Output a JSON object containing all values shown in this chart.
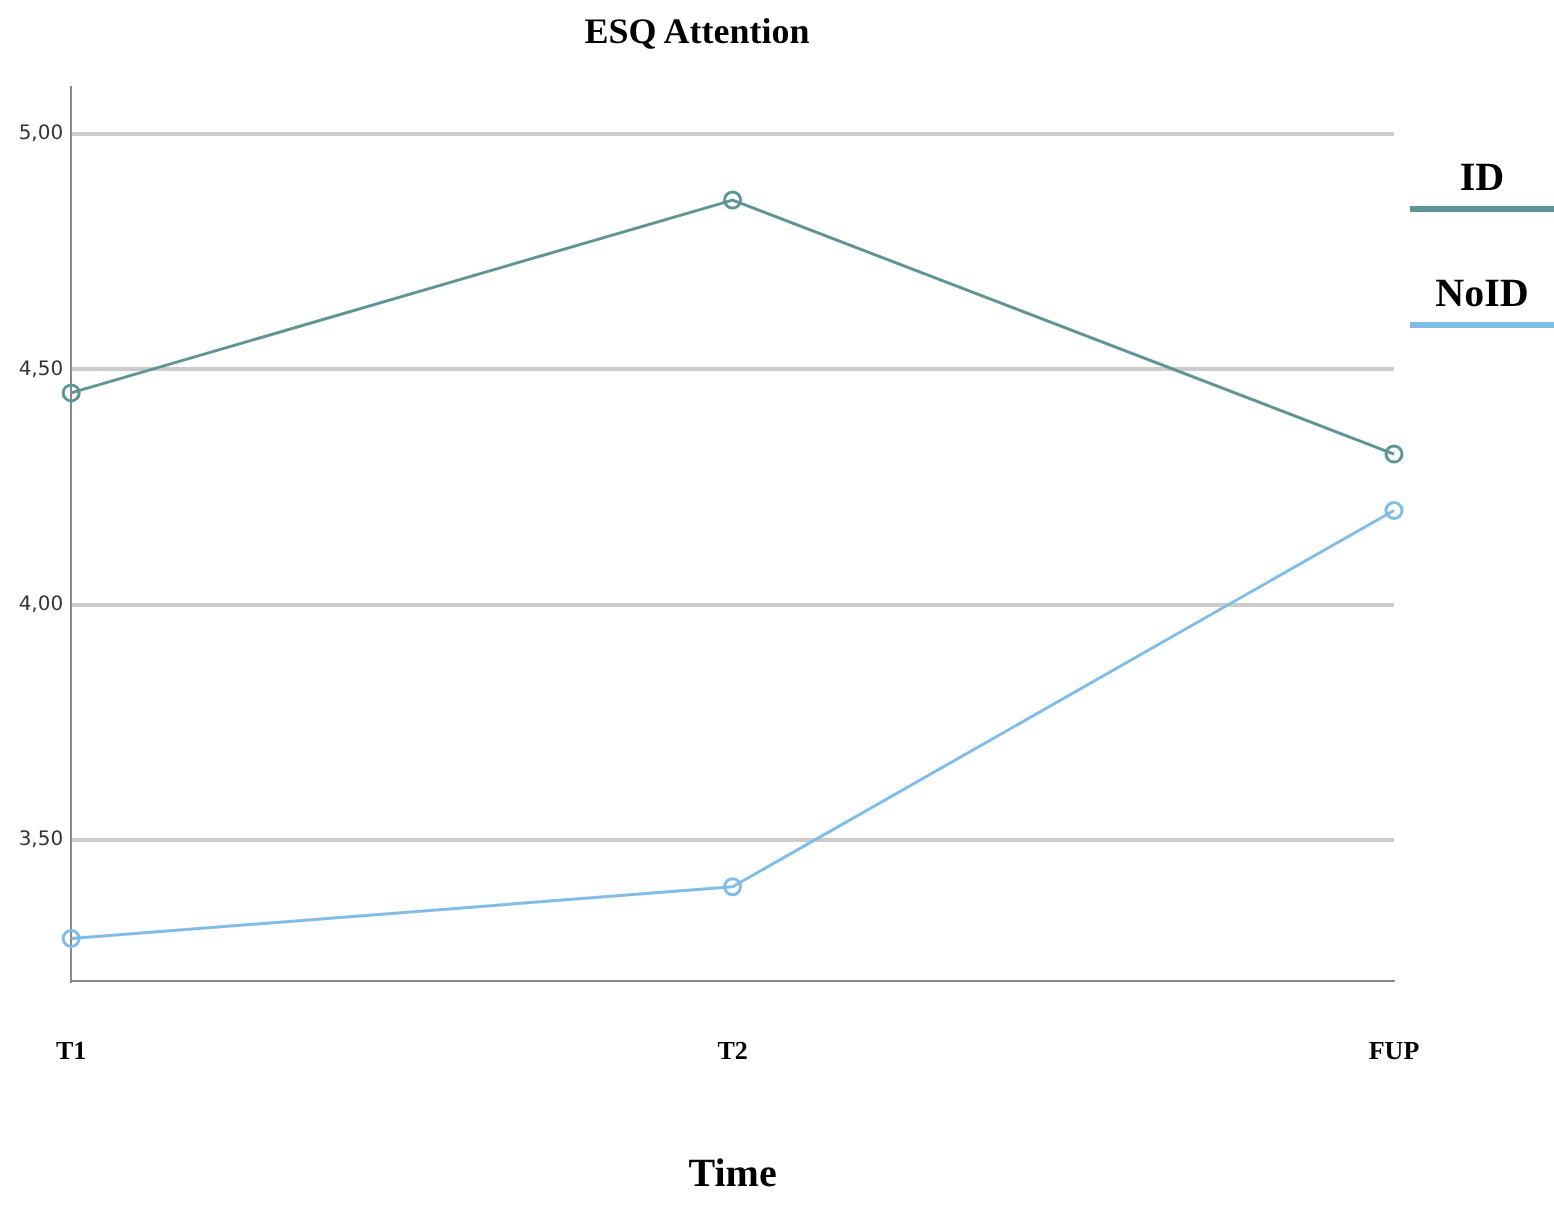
{
  "chart_data": {
    "type": "line",
    "title": "ESQ Attention",
    "xlabel": "Time",
    "categories": [
      "T1",
      "T2",
      "FUP"
    ],
    "series": [
      {
        "name": "ID",
        "color": "#5f9494",
        "values": [
          4.45,
          4.86,
          4.32
        ]
      },
      {
        "name": "NoID",
        "color": "#7fbde8",
        "values": [
          3.29,
          3.4,
          4.2
        ]
      }
    ],
    "ylim": [
      3.2,
      5.1
    ],
    "yticks": [
      {
        "value": 3.5,
        "label": "3,50"
      },
      {
        "value": 4,
        "label": "4,00"
      },
      {
        "value": 4.5,
        "label": "4,50"
      },
      {
        "value": 5,
        "label": "5,00"
      }
    ],
    "grid": "y",
    "legend": "right",
    "marker": "circle",
    "line_style": "solid"
  }
}
